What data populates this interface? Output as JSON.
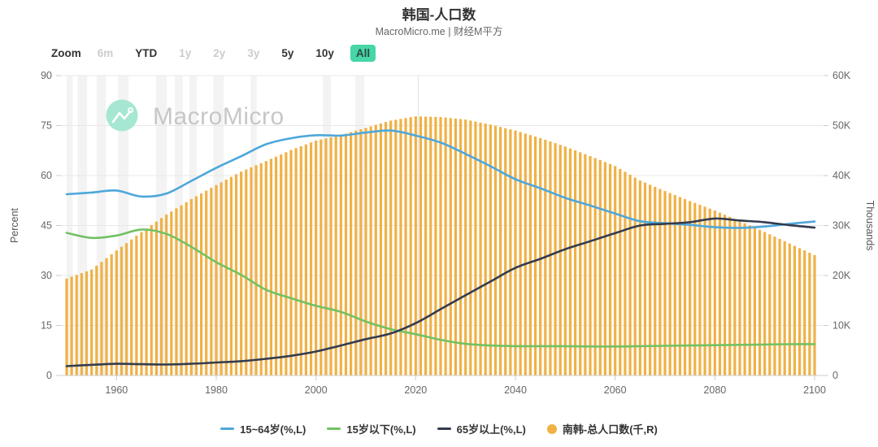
{
  "header": {
    "title": "韩国-人口数",
    "subtitle": "MacroMicro.me | 财经M平方"
  },
  "toolbar": {
    "zoom_label": "Zoom",
    "buttons": [
      {
        "label": "6m",
        "state": "disabled"
      },
      {
        "label": "YTD",
        "state": "enabled"
      },
      {
        "label": "1y",
        "state": "disabled"
      },
      {
        "label": "2y",
        "state": "disabled"
      },
      {
        "label": "3y",
        "state": "disabled"
      },
      {
        "label": "5y",
        "state": "enabled"
      },
      {
        "label": "10y",
        "state": "enabled"
      },
      {
        "label": "All",
        "state": "selected"
      }
    ],
    "selected_color": "#46d6a8"
  },
  "watermark": {
    "text": "MacroMicro",
    "circle_color": "#a5e7d2",
    "text_color": "#c7c7c7"
  },
  "chart_data": {
    "type": "mixed",
    "x_label": "",
    "x_range": [
      1950,
      2100
    ],
    "x_tick_years": [
      1960,
      1980,
      2000,
      2020,
      2040,
      2060,
      2080,
      2100
    ],
    "y_left": {
      "label": "Percent",
      "min": 0,
      "max": 90,
      "ticks": [
        0,
        15,
        30,
        45,
        60,
        75,
        90
      ],
      "tick_labels": [
        "0",
        "15",
        "30",
        "45",
        "60",
        "75",
        "90"
      ]
    },
    "y_right": {
      "label": "Thousands",
      "min": 0,
      "max": 60000,
      "ticks": [
        0,
        10000,
        20000,
        30000,
        40000,
        50000,
        60000
      ],
      "tick_labels": [
        "0",
        "10K",
        "20K",
        "30K",
        "40K",
        "50K",
        "60K"
      ]
    },
    "anchor_years": [
      1950,
      1955,
      1960,
      1965,
      1970,
      1975,
      1980,
      1985,
      1990,
      1995,
      2000,
      2005,
      2010,
      2015,
      2020,
      2025,
      2030,
      2035,
      2040,
      2045,
      2050,
      2055,
      2060,
      2065,
      2070,
      2075,
      2080,
      2085,
      2090,
      2095,
      2100
    ],
    "series": [
      {
        "name": "15~64岁(%,L)",
        "type": "line",
        "axis": "left",
        "color": "#4ea7da",
        "values": [
          54.4,
          54.9,
          55.5,
          53.7,
          54.6,
          58.4,
          62.3,
          65.8,
          69.4,
          71.2,
          72.1,
          72.0,
          72.9,
          73.5,
          72.0,
          69.9,
          66.5,
          62.8,
          58.9,
          56.2,
          53.3,
          51.0,
          48.6,
          46.3,
          45.7,
          45.2,
          44.5,
          44.3,
          44.7,
          45.5,
          46.2
        ]
      },
      {
        "name": "15岁以下(%,L)",
        "type": "line",
        "axis": "left",
        "color": "#72c162",
        "values": [
          42.8,
          41.3,
          42.0,
          43.8,
          42.5,
          38.6,
          34.0,
          30.2,
          25.7,
          23.2,
          20.9,
          19.1,
          16.2,
          13.9,
          12.4,
          10.7,
          9.5,
          9.0,
          8.8,
          8.8,
          8.8,
          8.7,
          8.7,
          8.8,
          8.9,
          9.0,
          9.1,
          9.2,
          9.3,
          9.4,
          9.4
        ]
      },
      {
        "name": "65岁以上(%,L)",
        "type": "line",
        "axis": "left",
        "color": "#333c4e",
        "values": [
          2.8,
          3.2,
          3.5,
          3.4,
          3.3,
          3.5,
          3.9,
          4.3,
          5.0,
          5.9,
          7.2,
          9.0,
          10.9,
          12.6,
          15.7,
          19.9,
          24.1,
          28.2,
          32.3,
          35.0,
          37.9,
          40.3,
          42.7,
          45.0,
          45.5,
          46.0,
          47.1,
          46.5,
          46.0,
          45.1,
          44.4
        ]
      },
      {
        "name": "南韩-总人口数(千,R)",
        "type": "bar",
        "axis": "right",
        "color": "#f0b145",
        "values": [
          19400,
          21200,
          25000,
          28700,
          32200,
          35300,
          38100,
          40800,
          42900,
          45100,
          47000,
          48100,
          49550,
          51000,
          51840,
          51700,
          51200,
          50200,
          49000,
          47500,
          45800,
          43900,
          41900,
          39000,
          36900,
          34900,
          33000,
          30900,
          28700,
          26400,
          24100
        ]
      }
    ],
    "plot_bands": [
      [
        1950,
        1951.2
      ],
      [
        1952.2,
        1954.1
      ],
      [
        1956,
        1957.9
      ],
      [
        1960.3,
        1962.4
      ],
      [
        1967.9,
        1970.1
      ],
      [
        1971.7,
        1973.3
      ],
      [
        1974.6,
        1976.1
      ],
      [
        1979.4,
        1981.5
      ],
      [
        1986.9,
        1988.1
      ],
      [
        2001.4,
        2003.0
      ],
      [
        2007.9,
        2009.7
      ]
    ],
    "plot_band_color": "#f3f3f3",
    "plot_line_year": 2020.5,
    "grid_color": "#e8e8e8",
    "axis_color": "#cccccc",
    "axis_text_color": "#666666"
  },
  "legend": {
    "items": [
      {
        "label": "15~64岁(%,L)",
        "marker": "line",
        "color": "#4ea7da"
      },
      {
        "label": "15岁以下(%,L)",
        "marker": "line",
        "color": "#72c162"
      },
      {
        "label": "65岁以上(%,L)",
        "marker": "line",
        "color": "#333c4e"
      },
      {
        "label": "南韩-总人口数(千,R)",
        "marker": "circle",
        "color": "#f0b145"
      }
    ]
  }
}
